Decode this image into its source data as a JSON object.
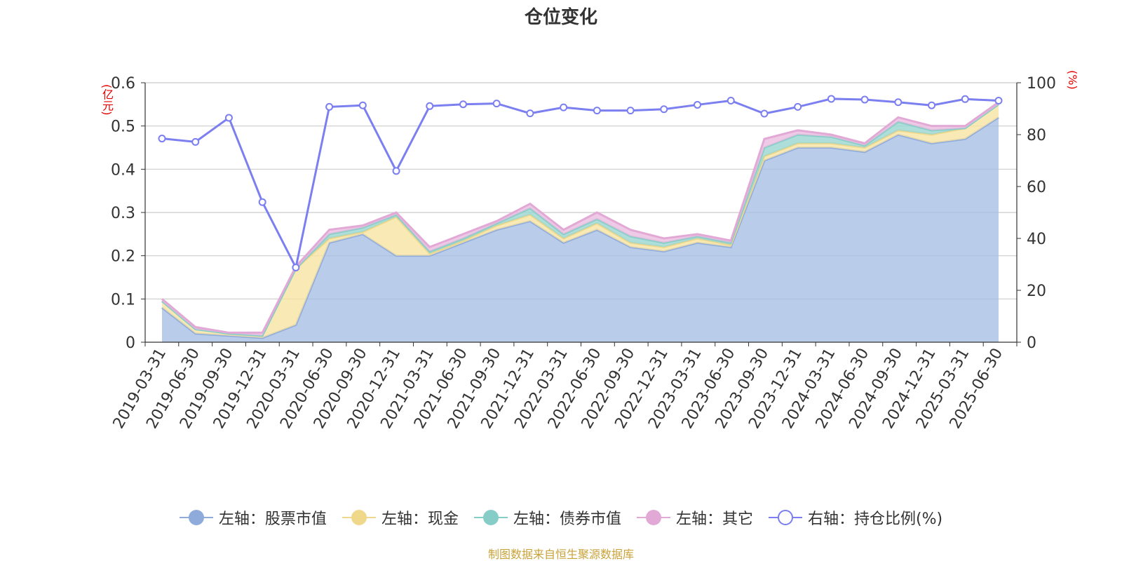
{
  "title": "仓位变化",
  "footer": "制图数据来自恒生聚源数据库",
  "chart_data": {
    "type": "area",
    "categories": [
      "2019-03-31",
      "2019-06-30",
      "2019-09-30",
      "2019-12-31",
      "2020-03-31",
      "2020-06-30",
      "2020-09-30",
      "2020-12-31",
      "2021-03-31",
      "2021-06-30",
      "2021-09-30",
      "2021-12-31",
      "2022-03-31",
      "2022-06-30",
      "2022-09-30",
      "2022-12-31",
      "2023-03-31",
      "2023-06-30",
      "2023-09-30",
      "2023-12-31",
      "2024-03-31",
      "2024-06-30",
      "2024-09-30",
      "2024-12-31",
      "2025-03-31",
      "2025-06-30"
    ],
    "left_axis": {
      "unit": "(亿元)",
      "ylim": [
        0,
        0.6
      ],
      "ticks": [
        "0",
        "0.1",
        "0.2",
        "0.3",
        "0.4",
        "0.5",
        "0.6"
      ]
    },
    "right_axis": {
      "unit": "(%)",
      "ylim": [
        0,
        100
      ],
      "ticks": [
        "0",
        "20",
        "40",
        "60",
        "80",
        "100"
      ]
    },
    "grid": true,
    "legend_position": "bottom",
    "series": [
      {
        "name": "左轴：股票市值",
        "axis": "left",
        "stacked": true,
        "color": "#a5bfe6",
        "values": [
          0.08,
          0.02,
          0.015,
          0.01,
          0.04,
          0.23,
          0.25,
          0.2,
          0.2,
          0.23,
          0.26,
          0.28,
          0.23,
          0.26,
          0.22,
          0.21,
          0.23,
          0.22,
          0.42,
          0.45,
          0.45,
          0.44,
          0.48,
          0.46,
          0.47,
          0.52
        ]
      },
      {
        "name": "左轴：现金",
        "axis": "left",
        "stacked": true,
        "color": "#f7e3a1",
        "values": [
          0.015,
          0.01,
          0.005,
          0.005,
          0.13,
          0.01,
          0.005,
          0.09,
          0.005,
          0.005,
          0.01,
          0.015,
          0.01,
          0.015,
          0.01,
          0.01,
          0.01,
          0.005,
          0.01,
          0.01,
          0.01,
          0.01,
          0.01,
          0.02,
          0.025,
          0.03
        ]
      },
      {
        "name": "左轴：债券市值",
        "axis": "left",
        "stacked": true,
        "color": "#99d6d1",
        "values": [
          0,
          0,
          0,
          0,
          0,
          0.01,
          0.01,
          0.005,
          0.005,
          0.005,
          0.005,
          0.015,
          0.01,
          0.01,
          0.015,
          0.01,
          0.005,
          0.005,
          0.02,
          0.02,
          0.015,
          0.005,
          0.02,
          0.01,
          0,
          0
        ]
      },
      {
        "name": "左轴：其它",
        "axis": "left",
        "stacked": true,
        "color": "#ebbde0",
        "values": [
          0.005,
          0.005,
          0.002,
          0.007,
          0.005,
          0.01,
          0.005,
          0.005,
          0.01,
          0.01,
          0.005,
          0.01,
          0.01,
          0.015,
          0.015,
          0.01,
          0.005,
          0.005,
          0.02,
          0.01,
          0.005,
          0.005,
          0.01,
          0.01,
          0.005,
          0.005
        ]
      },
      {
        "name": "右轴：持仓比例(%)",
        "axis": "right",
        "type": "line",
        "color": "#7b7ff0",
        "values": [
          78.5,
          77.2,
          86.5,
          54,
          28.8,
          90.7,
          91.3,
          66,
          91,
          91.7,
          92,
          88.2,
          90.5,
          89.3,
          89.3,
          89.8,
          91.5,
          93.1,
          88.1,
          90.7,
          93.8,
          93.5,
          92.5,
          91.3,
          93.7,
          93.1
        ]
      }
    ]
  }
}
